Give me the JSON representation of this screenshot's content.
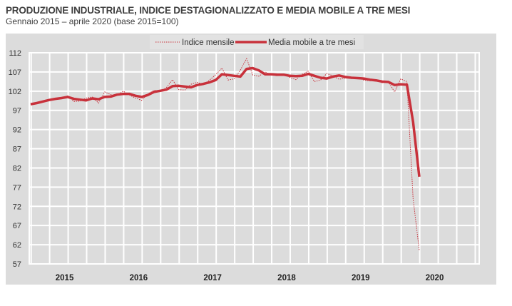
{
  "chart_data": {
    "type": "line",
    "title": "PRODUZIONE INDUSTRIALE, INDICE DESTAGIONALIZZATO E MEDIA MOBILE A TRE MESI",
    "subtitle": "Gennaio 2015 – aprile 2020 (base 2015=100)",
    "x_start": "2015-01",
    "x_end": "2020-04",
    "x_tick_labels": [
      "2015",
      "2016",
      "2017",
      "2018",
      "2019",
      "2020"
    ],
    "y_ticks": [
      57,
      62,
      67,
      72,
      77,
      82,
      87,
      92,
      97,
      102,
      107,
      112
    ],
    "ylim": [
      57,
      112
    ],
    "grid": true,
    "legend_position": "top",
    "colors": {
      "series": "#c8313b",
      "background": "#dcdcdc",
      "grid": "#ffffff"
    },
    "series": [
      {
        "name": "Indice mensile",
        "style": "dotted",
        "values": [
          98.5,
          99.0,
          99.3,
          99.8,
          100.2,
          100.0,
          100.8,
          99.3,
          99.4,
          100.2,
          100.5,
          98.9,
          101.8,
          101.1,
          100.9,
          102.0,
          101.0,
          100.2,
          99.6,
          101.3,
          102.2,
          102.0,
          102.9,
          105.0,
          102.4,
          102.3,
          103.8,
          104.3,
          103.7,
          104.9,
          106.3,
          108.0,
          104.9,
          105.2,
          107.5,
          110.5,
          106.2,
          105.9,
          107.0,
          106.3,
          106.0,
          106.5,
          105.6,
          105.0,
          106.4,
          107.2,
          104.5,
          104.9,
          106.6,
          106.0,
          105.1,
          105.4,
          105.3,
          105.5,
          104.9,
          104.7,
          104.9,
          104.2,
          104.4,
          101.8,
          105.2,
          104.5,
          74.0,
          60.5
        ]
      },
      {
        "name": "Media mobile a tre mesi",
        "style": "solid",
        "values": [
          98.6,
          98.9,
          99.3,
          99.7,
          100.0,
          100.2,
          100.5,
          100.0,
          99.8,
          99.6,
          100.1,
          99.9,
          100.5,
          100.6,
          101.1,
          101.3,
          101.3,
          100.8,
          100.5,
          101.0,
          101.8,
          102.1,
          102.4,
          103.3,
          103.4,
          103.2,
          103.0,
          103.6,
          103.9,
          104.3,
          104.9,
          106.4,
          106.2,
          106.0,
          105.8,
          107.8,
          108.0,
          107.4,
          106.4,
          106.4,
          106.3,
          106.3,
          106.0,
          105.9,
          106.0,
          106.5,
          106.0,
          105.5,
          105.3,
          105.8,
          106.1,
          105.7,
          105.5,
          105.4,
          105.3,
          105.0,
          104.8,
          104.5,
          104.4,
          103.6,
          103.8,
          103.7,
          94.0,
          79.7
        ]
      }
    ]
  }
}
